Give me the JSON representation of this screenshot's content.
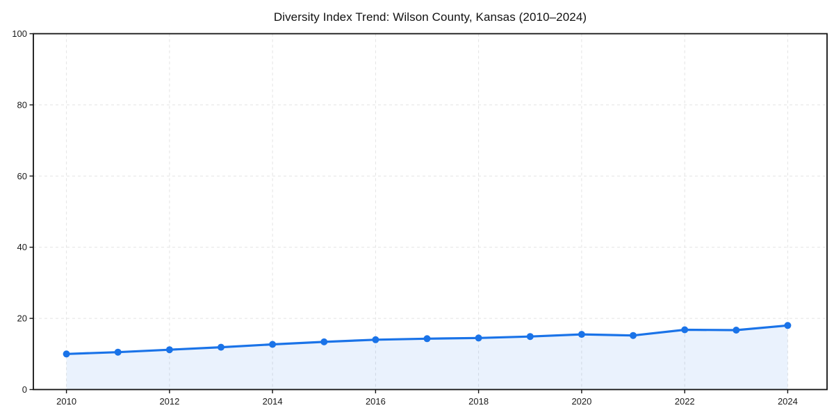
{
  "page": {
    "background": "#ffffff"
  },
  "chart_data": {
    "type": "area",
    "title": "Diversity Index Trend: Wilson County, Kansas (2010–2024)",
    "series_name": "Diversity Index",
    "x": [
      2010,
      2011,
      2012,
      2013,
      2014,
      2015,
      2016,
      2017,
      2018,
      2019,
      2020,
      2021,
      2022,
      2023,
      2024
    ],
    "values": [
      10.0,
      10.5,
      11.2,
      11.9,
      12.7,
      13.4,
      14.0,
      14.3,
      14.5,
      14.9,
      15.5,
      15.2,
      16.8,
      16.7,
      18.0
    ],
    "xlabel": "",
    "ylabel": "",
    "xlim": [
      2009.4,
      2024.8
    ],
    "ylim": [
      0,
      100
    ],
    "xticks": [
      2010,
      2012,
      2014,
      2016,
      2018,
      2020,
      2022,
      2024
    ],
    "yticks": [
      0,
      20,
      40,
      60,
      80,
      100
    ],
    "grid": {
      "show": true,
      "style": "dashed",
      "color": "#e3e3e3"
    },
    "legend": {
      "show": false
    },
    "marker": {
      "shape": "circle",
      "radius": 5
    },
    "line_width": 3.2,
    "colors": {
      "line": "#1a73e8",
      "marker": "#1a73e8",
      "fill": "rgba(26,115,232,0.09)",
      "axis": "#111111",
      "tick_label": "#1a1a1a",
      "title": "#111111",
      "background": "#ffffff"
    }
  }
}
